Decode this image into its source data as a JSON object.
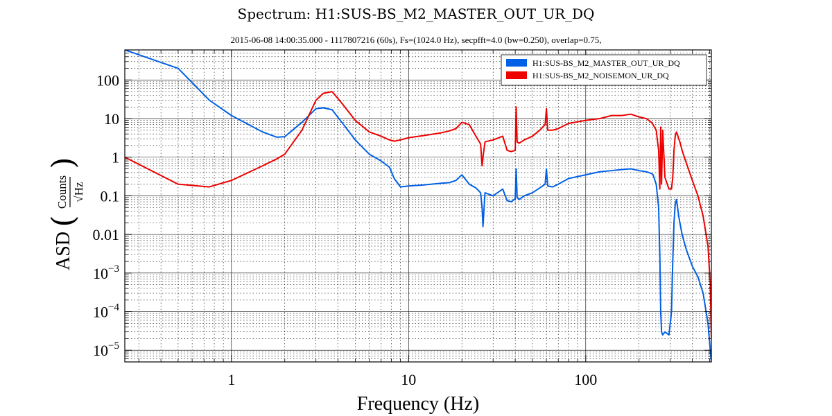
{
  "title": "Spectrum: H1:SUS-BS_M2_MASTER_OUT_UR_DQ",
  "subtitle": "2015-06-08  14:00:35.000 - 1117807216  (60s),  Fs=(1024.0 Hz),  secpfft=4.0  (bw=0.250),  overlap=0.75,",
  "chart_data": {
    "type": "line",
    "xlabel": "Frequency (Hz)",
    "ylabel_prefix": "ASD",
    "ylabel_numerator": "Counts",
    "ylabel_denominator": "√Hz",
    "xscale": "log",
    "yscale": "log",
    "xlim": [
      0.25,
      512
    ],
    "ylim": [
      5e-06,
      600
    ],
    "grid": true,
    "legend_position": "top-right",
    "x_ticks": [
      {
        "value": 1,
        "label": "1"
      },
      {
        "value": 10,
        "label": "10"
      },
      {
        "value": 100,
        "label": "100"
      }
    ],
    "y_ticks": [
      {
        "value": 100,
        "label": "100"
      },
      {
        "value": 10,
        "label": "10"
      },
      {
        "value": 1,
        "label": "1"
      },
      {
        "value": 0.1,
        "label": "0.1"
      },
      {
        "value": 0.01,
        "label": "0.01"
      },
      {
        "value": 0.001,
        "label": "10",
        "exp": "−3"
      },
      {
        "value": 0.0001,
        "label": "10",
        "exp": "−4"
      },
      {
        "value": 1e-05,
        "label": "10",
        "exp": "−5"
      }
    ],
    "series": [
      {
        "name": "H1:SUS-BS_M2_MASTER_OUT_UR_DQ",
        "color": "#0060e6",
        "x": [
          0.25,
          0.5,
          0.75,
          1.0,
          1.5,
          1.8,
          2.0,
          2.5,
          3.0,
          3.3,
          3.7,
          4.2,
          5.0,
          6.0,
          7.0,
          7.8,
          8.3,
          9.0,
          10,
          12,
          15,
          17,
          18.5,
          20,
          22,
          24,
          25.5,
          26,
          26.3,
          27,
          30,
          34,
          36,
          38,
          40,
          40.5,
          41,
          42,
          45,
          50,
          55,
          59,
          60,
          61,
          65,
          70,
          80,
          100,
          120,
          140,
          160,
          180,
          200,
          220,
          235,
          240,
          250,
          258,
          262,
          265,
          268,
          272,
          280,
          295,
          305,
          310,
          315,
          320,
          325,
          330,
          335,
          340,
          350,
          370,
          400,
          430,
          460,
          490,
          505,
          512
        ],
        "y": [
          600,
          200,
          30,
          12,
          4.5,
          3.3,
          3.4,
          8,
          18,
          19,
          17,
          8,
          2.8,
          1.2,
          0.8,
          0.55,
          0.28,
          0.17,
          0.18,
          0.19,
          0.21,
          0.22,
          0.25,
          0.35,
          0.2,
          0.16,
          0.12,
          0.05,
          0.016,
          0.12,
          0.1,
          0.15,
          0.075,
          0.07,
          0.085,
          0.5,
          0.09,
          0.08,
          0.1,
          0.12,
          0.16,
          0.2,
          0.5,
          0.18,
          0.17,
          0.2,
          0.28,
          0.35,
          0.42,
          0.45,
          0.48,
          0.5,
          0.45,
          0.42,
          0.38,
          0.35,
          0.2,
          0.05,
          0.003,
          0.0001,
          3e-05,
          2.5e-05,
          3e-05,
          2.5e-05,
          0.0001,
          0.002,
          0.02,
          0.06,
          0.08,
          0.05,
          0.03,
          0.02,
          0.01,
          0.004,
          0.0015,
          0.0008,
          0.0003,
          5e-05,
          1e-05,
          5e-06
        ]
      },
      {
        "name": "H1:SUS-BS_M2_NOISEMON_UR_DQ",
        "color": "#ee0000",
        "x": [
          0.25,
          0.5,
          0.75,
          1.0,
          1.5,
          1.8,
          2.0,
          2.5,
          3.0,
          3.3,
          3.7,
          4.2,
          5.0,
          6.0,
          7.0,
          7.8,
          8.3,
          9.0,
          10,
          12,
          15,
          17,
          18.5,
          20,
          22,
          24,
          25.5,
          26,
          26.3,
          27,
          30,
          34,
          36,
          38,
          40,
          40.5,
          41,
          42,
          45,
          50,
          55,
          59,
          60,
          61,
          65,
          70,
          80,
          100,
          120,
          140,
          160,
          180,
          200,
          220,
          235,
          240,
          250,
          258,
          262,
          265,
          268,
          272,
          280,
          295,
          305,
          310,
          315,
          320,
          325,
          330,
          335,
          340,
          350,
          370,
          400,
          430,
          460,
          490,
          505,
          512
        ],
        "y": [
          1.0,
          0.2,
          0.17,
          0.25,
          0.6,
          0.9,
          1.2,
          5,
          30,
          45,
          50,
          25,
          9,
          4.5,
          3.5,
          2.8,
          2.6,
          2.8,
          3.2,
          3.6,
          4.2,
          4.8,
          5.5,
          8,
          7,
          3.5,
          2.2,
          0.6,
          1.0,
          2.5,
          2.8,
          3.5,
          1.5,
          1.4,
          1.5,
          20,
          2.5,
          2.3,
          2.8,
          3.5,
          5,
          7,
          18,
          5,
          5,
          5.5,
          7.5,
          9,
          10,
          12,
          12,
          13,
          11,
          10,
          8,
          7,
          5,
          1.5,
          0.15,
          6,
          0.2,
          5,
          0.3,
          0.15,
          0.15,
          0.3,
          1.5,
          3.5,
          4.5,
          3.8,
          3,
          2.5,
          1.5,
          0.7,
          0.25,
          0.1,
          0.03,
          0.005,
          0.0005,
          2e-05
        ]
      }
    ]
  }
}
